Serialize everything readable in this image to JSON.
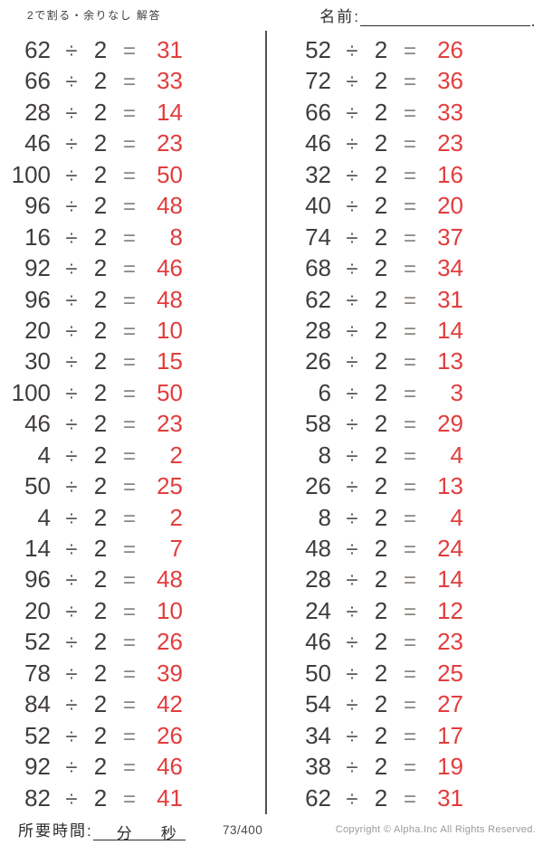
{
  "worksheet": {
    "title": "2で割る・余りなし 解答",
    "name_label": "名前:",
    "operator": "÷",
    "divisor": "2",
    "equals": "=",
    "colors": {
      "answer_red": "#e23d3d",
      "problem_text": "#413d3c",
      "symbol_gray": "#8a8580",
      "divider_gray": "#55504e"
    },
    "problems": {
      "left": [
        {
          "dividend": "62",
          "answer": "31"
        },
        {
          "dividend": "66",
          "answer": "33"
        },
        {
          "dividend": "28",
          "answer": "14"
        },
        {
          "dividend": "46",
          "answer": "23"
        },
        {
          "dividend": "100",
          "answer": "50"
        },
        {
          "dividend": "96",
          "answer": "48"
        },
        {
          "dividend": "16",
          "answer": "8"
        },
        {
          "dividend": "92",
          "answer": "46"
        },
        {
          "dividend": "96",
          "answer": "48"
        },
        {
          "dividend": "20",
          "answer": "10"
        },
        {
          "dividend": "30",
          "answer": "15"
        },
        {
          "dividend": "100",
          "answer": "50"
        },
        {
          "dividend": "46",
          "answer": "23"
        },
        {
          "dividend": "4",
          "answer": "2"
        },
        {
          "dividend": "50",
          "answer": "25"
        },
        {
          "dividend": "4",
          "answer": "2"
        },
        {
          "dividend": "14",
          "answer": "7"
        },
        {
          "dividend": "96",
          "answer": "48"
        },
        {
          "dividend": "20",
          "answer": "10"
        },
        {
          "dividend": "52",
          "answer": "26"
        },
        {
          "dividend": "78",
          "answer": "39"
        },
        {
          "dividend": "84",
          "answer": "42"
        },
        {
          "dividend": "52",
          "answer": "26"
        },
        {
          "dividend": "92",
          "answer": "46"
        },
        {
          "dividend": "82",
          "answer": "41"
        }
      ],
      "right": [
        {
          "dividend": "52",
          "answer": "26"
        },
        {
          "dividend": "72",
          "answer": "36"
        },
        {
          "dividend": "66",
          "answer": "33"
        },
        {
          "dividend": "46",
          "answer": "23"
        },
        {
          "dividend": "32",
          "answer": "16"
        },
        {
          "dividend": "40",
          "answer": "20"
        },
        {
          "dividend": "74",
          "answer": "37"
        },
        {
          "dividend": "68",
          "answer": "34"
        },
        {
          "dividend": "62",
          "answer": "31"
        },
        {
          "dividend": "28",
          "answer": "14"
        },
        {
          "dividend": "26",
          "answer": "13"
        },
        {
          "dividend": "6",
          "answer": "3"
        },
        {
          "dividend": "58",
          "answer": "29"
        },
        {
          "dividend": "8",
          "answer": "4"
        },
        {
          "dividend": "26",
          "answer": "13"
        },
        {
          "dividend": "8",
          "answer": "4"
        },
        {
          "dividend": "48",
          "answer": "24"
        },
        {
          "dividend": "28",
          "answer": "14"
        },
        {
          "dividend": "24",
          "answer": "12"
        },
        {
          "dividend": "46",
          "answer": "23"
        },
        {
          "dividend": "50",
          "answer": "25"
        },
        {
          "dividend": "54",
          "answer": "27"
        },
        {
          "dividend": "34",
          "answer": "17"
        },
        {
          "dividend": "38",
          "answer": "19"
        },
        {
          "dividend": "62",
          "answer": "31"
        }
      ]
    },
    "footer": {
      "time_label": "所要時間:",
      "minutes_unit": "分",
      "seconds_unit": "秒",
      "page_number": "73/400",
      "copyright": "Copyright ©  Alpha.Inc All Rights Reserved."
    }
  }
}
